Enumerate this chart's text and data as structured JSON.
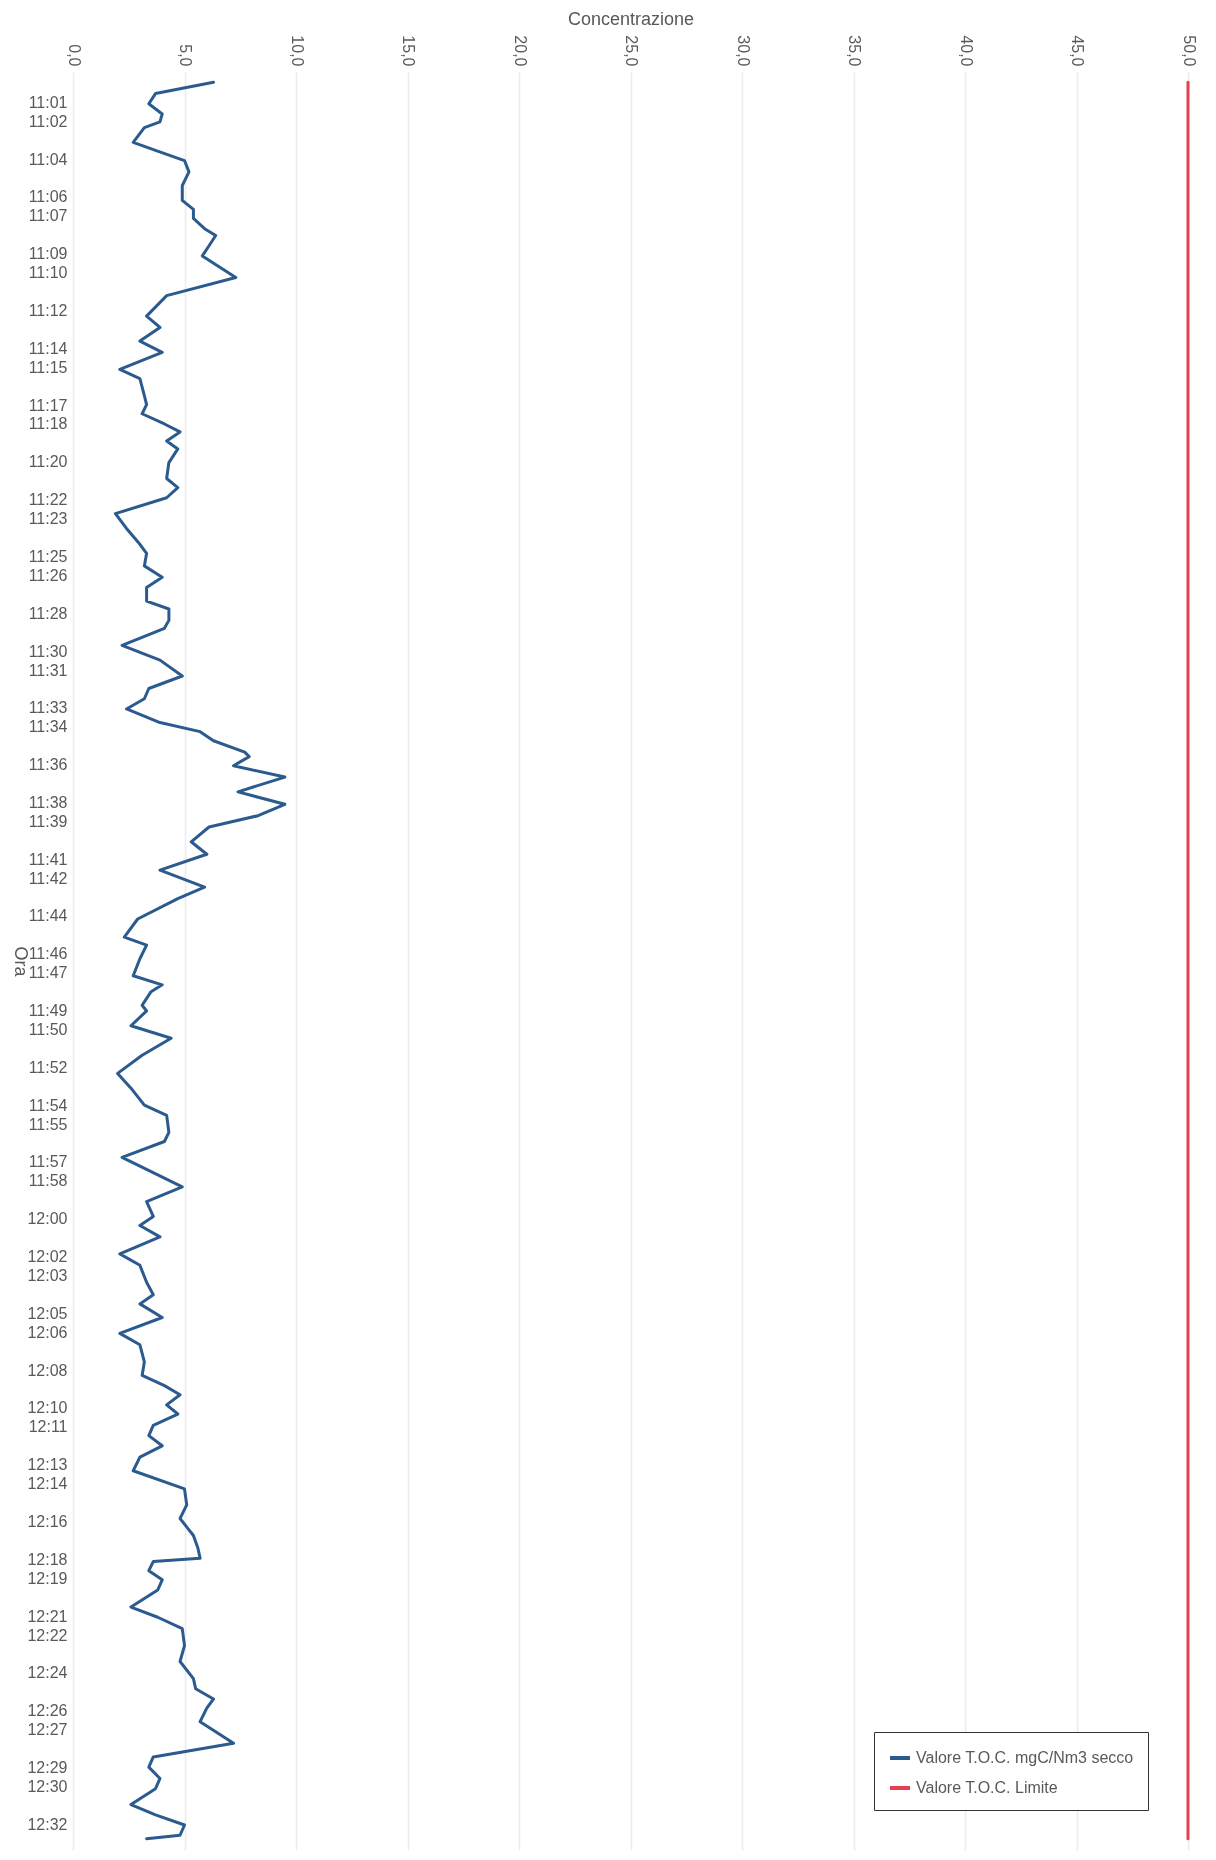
{
  "chart_data": {
    "type": "line",
    "orientation": "horizontal",
    "xlabel": "Concentrazione",
    "ylabel": "Ora",
    "series": [
      {
        "name": "Valore T.O.C. mgC/Nm3 secco",
        "color": "#2b5b8e",
        "x": [
          10.999,
          11.009,
          11.018,
          11.027,
          11.034,
          11.039,
          11.052,
          11.059,
          11.068,
          11.078,
          11.09,
          11.103,
          11.111,
          11.119,
          11.128,
          11.134,
          11.143,
          11.152,
          11.171,
          11.187,
          11.205,
          11.215,
          11.227,
          11.237,
          11.252,
          11.26,
          11.275,
          11.283,
          11.291,
          11.3,
          11.307,
          11.315,
          11.322,
          11.334,
          11.348,
          11.356,
          11.365,
          11.379,
          11.392,
          11.406,
          11.414,
          11.425,
          11.435,
          11.444,
          11.456,
          11.463,
          11.473,
          11.48,
          11.495,
          11.508,
          11.522,
          11.533,
          11.542,
          11.551,
          11.563,
          11.571,
          11.579,
          11.589,
          11.593,
          11.601,
          11.611,
          11.624,
          11.635,
          11.645,
          11.655,
          11.668,
          11.679,
          11.693,
          11.708,
          11.718,
          11.736,
          11.752,
          11.759,
          11.771,
          11.786,
          11.794,
          11.8,
          11.812,
          11.817,
          11.83,
          11.841,
          11.856,
          11.872,
          11.885,
          11.9,
          11.909,
          11.924,
          11.932,
          11.946,
          11.972,
          11.985,
          11.998,
          12.006,
          12.016,
          12.031,
          12.041,
          12.056,
          12.067,
          12.075,
          12.087,
          12.101,
          12.111,
          12.126,
          12.138,
          12.147,
          12.155,
          12.164,
          12.172,
          12.182,
          12.191,
          12.2,
          12.21,
          12.222,
          12.238,
          12.252,
          12.264,
          12.274,
          12.279,
          12.29,
          12.299,
          12.302,
          12.31,
          12.318,
          12.327,
          12.342,
          12.351,
          12.361,
          12.376,
          12.39,
          12.405,
          12.414,
          12.423,
          12.431,
          12.443,
          12.462,
          12.474,
          12.483,
          12.493,
          12.502,
          12.516,
          12.525,
          12.534,
          12.543,
          12.546
        ],
        "values": [
          6.3,
          3.7,
          3.4,
          4.0,
          3.9,
          3.2,
          2.7,
          3.7,
          5.0,
          5.2,
          4.9,
          4.9,
          5.4,
          5.4,
          5.9,
          6.4,
          6.1,
          5.8,
          7.3,
          4.2,
          3.3,
          3.9,
          3.0,
          4.0,
          2.1,
          3.0,
          3.2,
          3.3,
          3.1,
          4.1,
          4.8,
          4.2,
          4.7,
          4.3,
          4.2,
          4.7,
          4.2,
          1.9,
          2.4,
          3.0,
          3.3,
          3.2,
          4.0,
          3.3,
          3.3,
          4.3,
          4.3,
          4.1,
          2.2,
          3.9,
          4.9,
          3.4,
          3.2,
          2.4,
          3.9,
          5.7,
          6.3,
          7.7,
          7.9,
          7.2,
          9.5,
          7.4,
          9.5,
          8.3,
          6.1,
          5.3,
          6.0,
          3.9,
          5.9,
          4.7,
          2.9,
          2.3,
          3.3,
          3.0,
          2.7,
          4.0,
          3.5,
          3.1,
          3.3,
          2.6,
          4.4,
          3.1,
          2.0,
          2.6,
          3.2,
          4.2,
          4.3,
          4.1,
          2.2,
          4.9,
          3.3,
          3.6,
          3.0,
          3.9,
          2.1,
          3.0,
          3.3,
          3.6,
          3.0,
          4.0,
          2.1,
          3.0,
          3.2,
          3.1,
          4.1,
          4.8,
          4.2,
          4.7,
          3.6,
          3.4,
          4.0,
          3.0,
          2.7,
          5.0,
          5.1,
          4.8,
          5.2,
          5.4,
          5.6,
          5.7,
          3.6,
          3.4,
          4.0,
          3.8,
          2.6,
          3.8,
          4.9,
          5.0,
          4.8,
          5.4,
          5.5,
          6.3,
          6.0,
          5.7,
          7.2,
          3.6,
          3.4,
          3.9,
          3.7,
          2.6,
          3.7,
          5.0,
          4.8,
          3.3
        ]
      },
      {
        "name": "Valore T.O.C. Limite",
        "color": "#e5404e",
        "x": [
          10.999,
          12.546
        ],
        "values": [
          50,
          50
        ]
      }
    ],
    "ylim": [
      12.556,
      10.99
    ],
    "yticks": [
      {
        "value": 11.0167,
        "label": "11:01"
      },
      {
        "value": 11.0333,
        "label": "11:02"
      },
      {
        "value": 11.0667,
        "label": "11:04"
      },
      {
        "value": 11.1,
        "label": "11:06"
      },
      {
        "value": 11.1167,
        "label": "11:07"
      },
      {
        "value": 11.15,
        "label": "11:09"
      },
      {
        "value": 11.1667,
        "label": "11:10"
      },
      {
        "value": 11.2,
        "label": "11:12"
      },
      {
        "value": 11.2333,
        "label": "11:14"
      },
      {
        "value": 11.25,
        "label": "11:15"
      },
      {
        "value": 11.2833,
        "label": "11:17"
      },
      {
        "value": 11.3,
        "label": "11:18"
      },
      {
        "value": 11.3333,
        "label": "11:20"
      },
      {
        "value": 11.3667,
        "label": "11:22"
      },
      {
        "value": 11.3833,
        "label": "11:23"
      },
      {
        "value": 11.4167,
        "label": "11:25"
      },
      {
        "value": 11.4333,
        "label": "11:26"
      },
      {
        "value": 11.4667,
        "label": "11:28"
      },
      {
        "value": 11.5,
        "label": "11:30"
      },
      {
        "value": 11.5167,
        "label": "11:31"
      },
      {
        "value": 11.55,
        "label": "11:33"
      },
      {
        "value": 11.5667,
        "label": "11:34"
      },
      {
        "value": 11.6,
        "label": "11:36"
      },
      {
        "value": 11.6333,
        "label": "11:38"
      },
      {
        "value": 11.65,
        "label": "11:39"
      },
      {
        "value": 11.6833,
        "label": "11:41"
      },
      {
        "value": 11.7,
        "label": "11:42"
      },
      {
        "value": 11.7333,
        "label": "11:44"
      },
      {
        "value": 11.7667,
        "label": "11:46"
      },
      {
        "value": 11.7833,
        "label": "11:47"
      },
      {
        "value": 11.8167,
        "label": "11:49"
      },
      {
        "value": 11.8333,
        "label": "11:50"
      },
      {
        "value": 11.8667,
        "label": "11:52"
      },
      {
        "value": 11.9,
        "label": "11:54"
      },
      {
        "value": 11.9167,
        "label": "11:55"
      },
      {
        "value": 11.95,
        "label": "11:57"
      },
      {
        "value": 11.9667,
        "label": "11:58"
      },
      {
        "value": 12,
        "label": "12:00"
      },
      {
        "value": 12.0333,
        "label": "12:02"
      },
      {
        "value": 12.05,
        "label": "12:03"
      },
      {
        "value": 12.0833,
        "label": "12:05"
      },
      {
        "value": 12.1,
        "label": "12:06"
      },
      {
        "value": 12.1333,
        "label": "12:08"
      },
      {
        "value": 12.1667,
        "label": "12:10"
      },
      {
        "value": 12.1833,
        "label": "12:11"
      },
      {
        "value": 12.2167,
        "label": "12:13"
      },
      {
        "value": 12.2333,
        "label": "12:14"
      },
      {
        "value": 12.2667,
        "label": "12:16"
      },
      {
        "value": 12.3,
        "label": "12:18"
      },
      {
        "value": 12.3167,
        "label": "12:19"
      },
      {
        "value": 12.35,
        "label": "12:21"
      },
      {
        "value": 12.3667,
        "label": "12:22"
      },
      {
        "value": 12.4,
        "label": "12:24"
      },
      {
        "value": 12.4333,
        "label": "12:26"
      },
      {
        "value": 12.45,
        "label": "12:27"
      },
      {
        "value": 12.4833,
        "label": "12:29"
      },
      {
        "value": 12.5,
        "label": "12:30"
      },
      {
        "value": 12.5333,
        "label": "12:32"
      }
    ],
    "xlim": [
      0,
      50
    ],
    "xticks": [
      {
        "value": 0,
        "label": "0,0"
      },
      {
        "value": 5,
        "label": "5,0"
      },
      {
        "value": 10,
        "label": "10,0"
      },
      {
        "value": 15,
        "label": "15,0"
      },
      {
        "value": 20,
        "label": "20,0"
      },
      {
        "value": 25,
        "label": "25,0"
      },
      {
        "value": 30,
        "label": "30,0"
      },
      {
        "value": 35,
        "label": "35,0"
      },
      {
        "value": 40,
        "label": "40,0"
      },
      {
        "value": 45,
        "label": "45,0"
      },
      {
        "value": 50,
        "label": "50,0"
      }
    ],
    "grid": "x",
    "legend": "bottom right",
    "line_style": "solid"
  }
}
